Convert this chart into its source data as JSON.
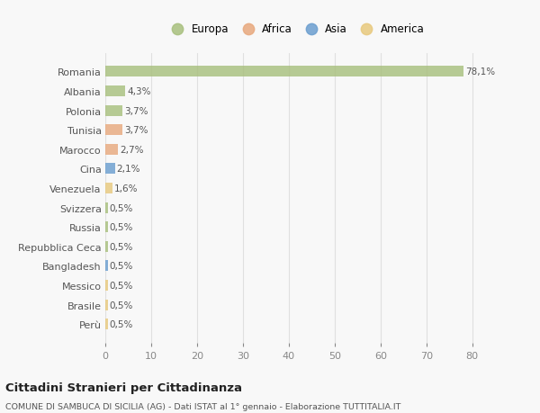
{
  "countries": [
    "Romania",
    "Albania",
    "Polonia",
    "Tunisia",
    "Marocco",
    "Cina",
    "Venezuela",
    "Svizzera",
    "Russia",
    "Repubblica Ceca",
    "Bangladesh",
    "Messico",
    "Brasile",
    "Perù"
  ],
  "values": [
    78.1,
    4.3,
    3.7,
    3.7,
    2.7,
    2.1,
    1.6,
    0.5,
    0.5,
    0.5,
    0.5,
    0.5,
    0.5,
    0.5
  ],
  "labels": [
    "78,1%",
    "4,3%",
    "3,7%",
    "3,7%",
    "2,7%",
    "2,1%",
    "1,6%",
    "0,5%",
    "0,5%",
    "0,5%",
    "0,5%",
    "0,5%",
    "0,5%",
    "0,5%"
  ],
  "continents": [
    "Europa",
    "Europa",
    "Europa",
    "Africa",
    "Africa",
    "Asia",
    "America",
    "Europa",
    "Europa",
    "Europa",
    "Asia",
    "America",
    "America",
    "America"
  ],
  "continent_colors": {
    "Europa": "#a8c07e",
    "Africa": "#e8a97e",
    "Asia": "#6b9ecf",
    "America": "#e8c97e"
  },
  "legend_labels": [
    "Europa",
    "Africa",
    "Asia",
    "America"
  ],
  "legend_colors": [
    "#a8c07e",
    "#e8a97e",
    "#6b9ecf",
    "#e8c97e"
  ],
  "title": "Cittadini Stranieri per Cittadinanza",
  "subtitle": "COMUNE DI SAMBUCA DI SICILIA (AG) - Dati ISTAT al 1° gennaio - Elaborazione TUTTITALIA.IT",
  "xlim": [
    0,
    83
  ],
  "xticks": [
    0,
    10,
    20,
    30,
    40,
    50,
    60,
    70,
    80
  ],
  "bg_color": "#f8f8f8",
  "grid_color": "#e0e0e0"
}
